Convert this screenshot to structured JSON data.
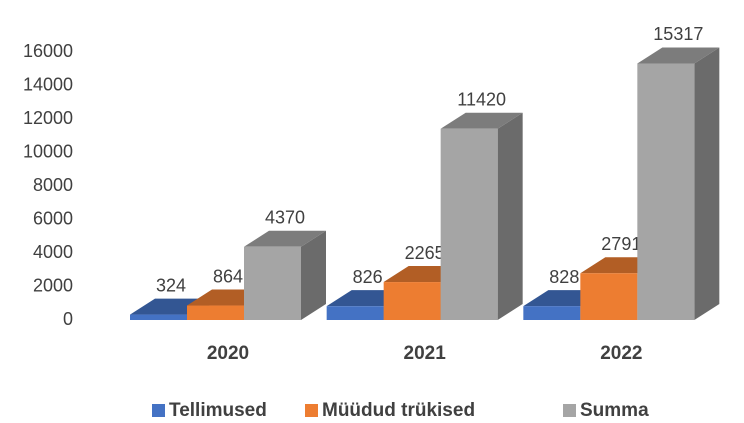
{
  "chart_data": {
    "type": "bar3d",
    "categories": [
      "2020",
      "2021",
      "2022"
    ],
    "series": [
      {
        "name": "Tellimused",
        "color": "#4472c4",
        "values": [
          324,
          826,
          828
        ]
      },
      {
        "name": "Müüdud trükised",
        "color": "#ed7d31",
        "values": [
          864,
          2265,
          2791
        ]
      },
      {
        "name": "Summa",
        "color": "#a5a5a5",
        "values": [
          4370,
          11420,
          15317
        ]
      }
    ],
    "ylim": [
      0,
      16000
    ],
    "yticks": [
      0,
      2000,
      4000,
      6000,
      8000,
      10000,
      12000,
      14000,
      16000
    ],
    "legend": "bottom"
  }
}
